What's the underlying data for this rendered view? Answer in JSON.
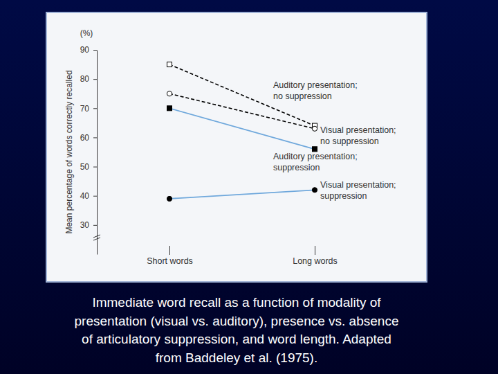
{
  "chart_data": {
    "type": "line",
    "ylabel": "Mean percentage of words correctly recalled",
    "yunit": "(%)",
    "caption": [
      "Immediate word recall as a function of modality of",
      "presentation (visual vs. auditory), presence vs. absence",
      "of articulatory suppression, and word length. Adapted",
      "from Baddeley et al. (1975)."
    ],
    "categories": [
      "Short words",
      "Long words"
    ],
    "series": [
      {
        "name": "Auditory presentation; no suppression",
        "color": "#000000",
        "line_style": "dashed",
        "marker": "square-open",
        "values": [
          85,
          64
        ]
      },
      {
        "name": "Visual presentation; no suppression",
        "color": "#000000",
        "line_style": "dashed",
        "marker": "circle-open",
        "values": [
          75,
          63
        ]
      },
      {
        "name": "Auditory presentation; suppression",
        "color": "#6fa8dc",
        "line_style": "solid",
        "marker": "square",
        "values": [
          70,
          56
        ]
      },
      {
        "name": "Visual presentation; suppression",
        "color": "#6fa8dc",
        "line_style": "solid",
        "marker": "circle",
        "values": [
          39,
          42
        ]
      }
    ],
    "ylim": [
      20,
      90
    ],
    "yticks": [
      30,
      40,
      50,
      60,
      70,
      80,
      90
    ],
    "grid": false
  }
}
